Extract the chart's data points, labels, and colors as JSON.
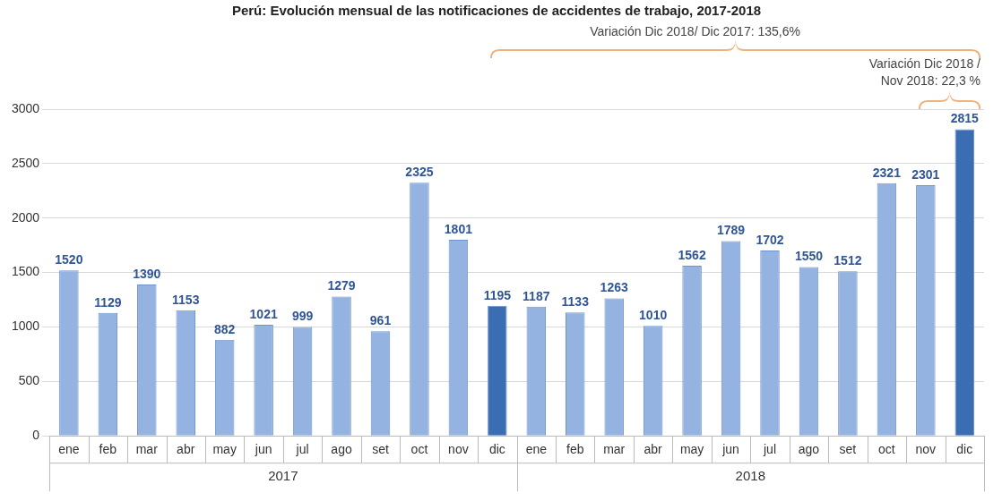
{
  "chart_data": {
    "type": "bar",
    "title": "Perú: Evolución mensual de las notificaciones de accidentes de trabajo, 2017-2018",
    "categories": [
      "ene",
      "feb",
      "mar",
      "abr",
      "may",
      "jun",
      "jul",
      "ago",
      "set",
      "oct",
      "nov",
      "dic",
      "ene",
      "feb",
      "mar",
      "abr",
      "may",
      "jun",
      "jul",
      "ago",
      "set",
      "oct",
      "nov",
      "dic"
    ],
    "values": [
      1520,
      1129,
      1390,
      1153,
      882,
      1021,
      999,
      1279,
      961,
      2325,
      1801,
      1195,
      1187,
      1133,
      1263,
      1010,
      1562,
      1789,
      1702,
      1550,
      1512,
      2321,
      2301,
      2815
    ],
    "colors": [
      "#95b3e0",
      "#95b3e0",
      "#95b3e0",
      "#95b3e0",
      "#95b3e0",
      "#95b3e0",
      "#95b3e0",
      "#95b3e0",
      "#95b3e0",
      "#95b3e0",
      "#95b3e0",
      "#3b6db3",
      "#95b3e0",
      "#95b3e0",
      "#95b3e0",
      "#95b3e0",
      "#95b3e0",
      "#95b3e0",
      "#95b3e0",
      "#95b3e0",
      "#95b3e0",
      "#95b3e0",
      "#95b3e0",
      "#3b6db3"
    ],
    "ylim": [
      0,
      3000
    ],
    "yticks": [
      0,
      500,
      1000,
      1500,
      2000,
      2500,
      3000
    ],
    "grid": "y",
    "data_labels": true,
    "legend": false,
    "annotations": [
      "Variación Dic 2018/ Dic 2017: 135,6%",
      "Variación Dic 2018 / Nov 2018: 22,3 %",
      "2017",
      "2018"
    ]
  }
}
